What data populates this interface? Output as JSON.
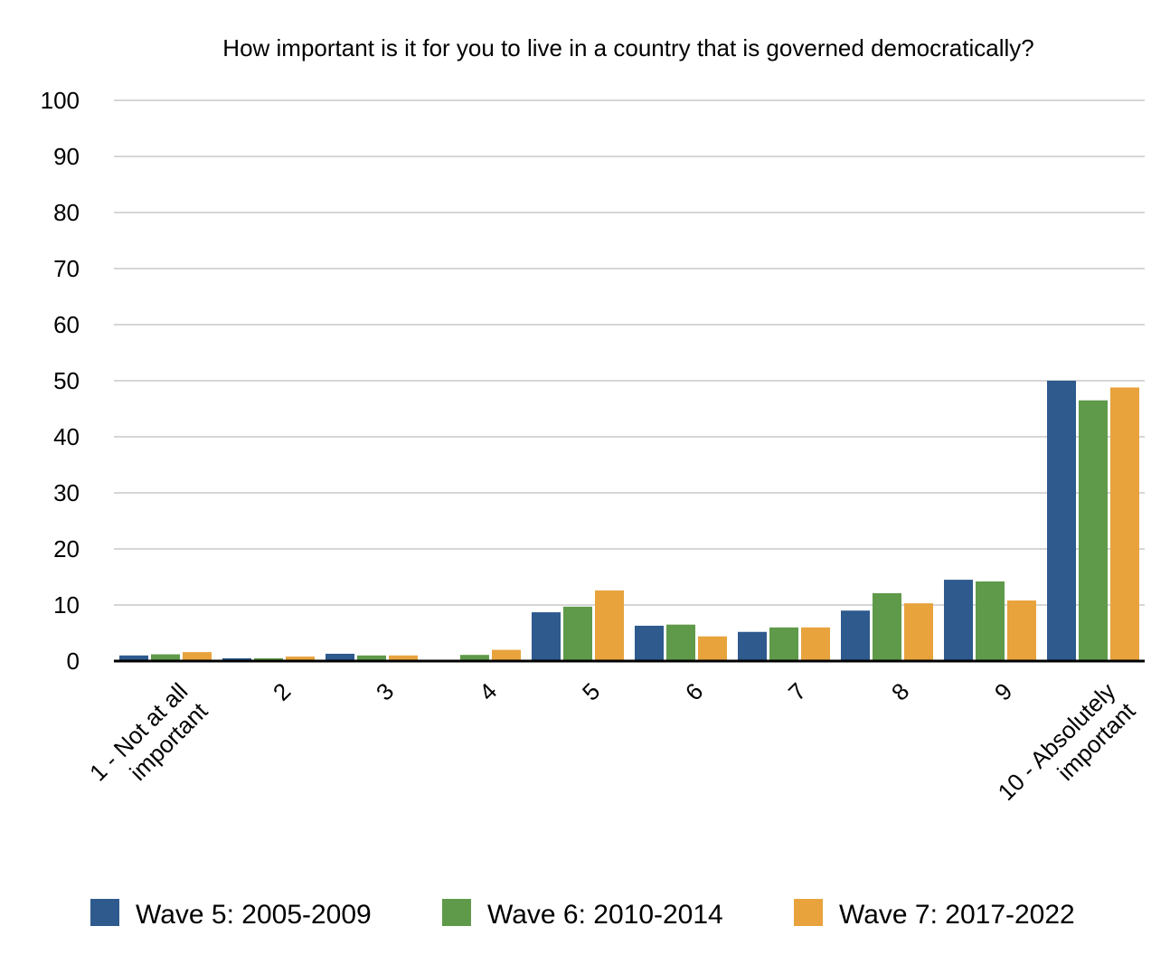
{
  "chart_data": {
    "type": "bar",
    "title": "How important is it for you to live in a country that is governed democratically?",
    "categories": [
      "1 - Not at all important",
      "2",
      "3",
      "4",
      "5",
      "6",
      "7",
      "8",
      "9",
      "10 - Absolutely important"
    ],
    "category_lines": [
      [
        "1 - Not at all",
        "important"
      ],
      [
        "2"
      ],
      [
        "3"
      ],
      [
        "4"
      ],
      [
        "5"
      ],
      [
        "6"
      ],
      [
        "7"
      ],
      [
        "8"
      ],
      [
        "9"
      ],
      [
        "10 - Absolutely",
        "important"
      ]
    ],
    "series": [
      {
        "name": "Wave 5: 2005-2009",
        "color": "#2e5a8e",
        "values": [
          1.0,
          0.5,
          1.3,
          0.0,
          8.7,
          6.3,
          5.2,
          9.0,
          14.5,
          50.0
        ]
      },
      {
        "name": "Wave 6: 2010-2014",
        "color": "#5f9a4a",
        "values": [
          1.2,
          0.5,
          1.0,
          1.1,
          9.7,
          6.5,
          6.0,
          12.1,
          14.2,
          46.5
        ]
      },
      {
        "name": "Wave 7: 2017-2022",
        "color": "#e8a33d",
        "values": [
          1.6,
          0.8,
          1.0,
          2.0,
          12.6,
          4.4,
          6.0,
          10.3,
          10.8,
          48.8
        ]
      }
    ],
    "yticks": [
      0,
      10,
      20,
      30,
      40,
      50,
      60,
      70,
      80,
      90,
      100
    ],
    "ylim": [
      0,
      100
    ],
    "grid": true,
    "legend_position": "bottom",
    "xlabel": "",
    "ylabel": ""
  }
}
